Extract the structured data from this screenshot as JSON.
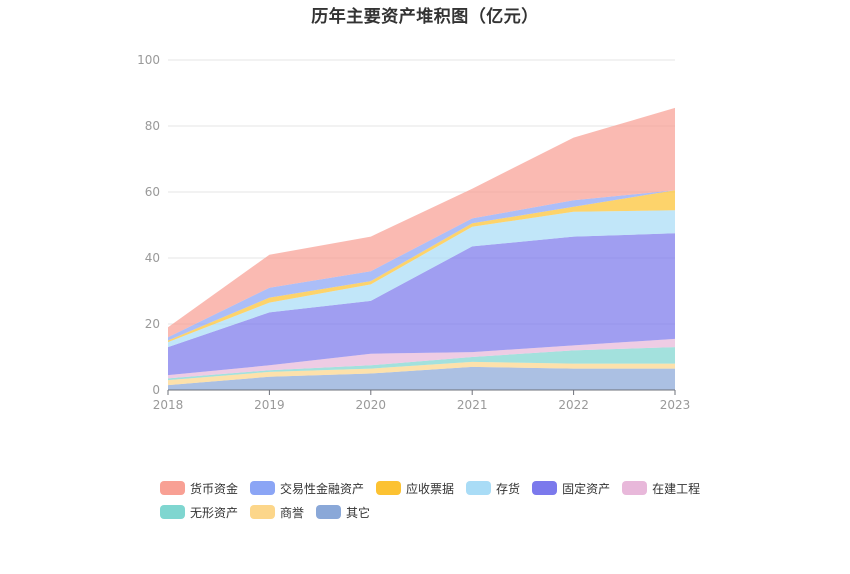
{
  "chart_data": {
    "type": "area",
    "stacked": true,
    "title": "历年主要资产堆积图（亿元）",
    "x": [
      "2018",
      "2019",
      "2020",
      "2021",
      "2022",
      "2023"
    ],
    "ylim": [
      0,
      100
    ],
    "yticks": [
      0,
      20,
      40,
      60,
      80,
      100
    ],
    "grid": true,
    "legend_position": "bottom",
    "series": [
      {
        "name": "其它",
        "color": "#8aa8d8",
        "values": [
          1.5,
          4.0,
          5.0,
          7.0,
          6.5,
          6.5
        ]
      },
      {
        "name": "商誉",
        "color": "#fcd68a",
        "values": [
          1.5,
          1.5,
          1.5,
          1.5,
          1.5,
          1.5
        ]
      },
      {
        "name": "无形资产",
        "color": "#7fd6d0",
        "values": [
          0.5,
          0.5,
          1.0,
          1.5,
          4.0,
          5.0
        ]
      },
      {
        "name": "在建工程",
        "color": "#e8b8da",
        "values": [
          1.0,
          1.5,
          3.5,
          1.5,
          1.5,
          2.5
        ]
      },
      {
        "name": "固定资产",
        "color": "#7b79ec",
        "values": [
          8.5,
          16.0,
          16.0,
          32.0,
          33.0,
          32.0
        ]
      },
      {
        "name": "存货",
        "color": "#a9dcf6",
        "values": [
          1.5,
          3.0,
          5.0,
          6.0,
          7.5,
          7.0
        ]
      },
      {
        "name": "应收票据",
        "color": "#fcc232",
        "values": [
          0.5,
          1.5,
          1.0,
          1.0,
          1.5,
          6.0
        ]
      },
      {
        "name": "交易性金融资产",
        "color": "#8ba5f5",
        "values": [
          1.0,
          3.0,
          3.0,
          1.5,
          2.0,
          0.0
        ]
      },
      {
        "name": "货币资金",
        "color": "#f8a094",
        "values": [
          3.0,
          10.0,
          10.5,
          9.0,
          19.0,
          25.0
        ]
      }
    ]
  },
  "legend": {
    "rows": [
      [
        "货币资金",
        "交易性金融资产",
        "应收票据",
        "存货",
        "固定资产",
        "在建工程"
      ],
      [
        "无形资产",
        "商誉",
        "其它"
      ]
    ]
  }
}
